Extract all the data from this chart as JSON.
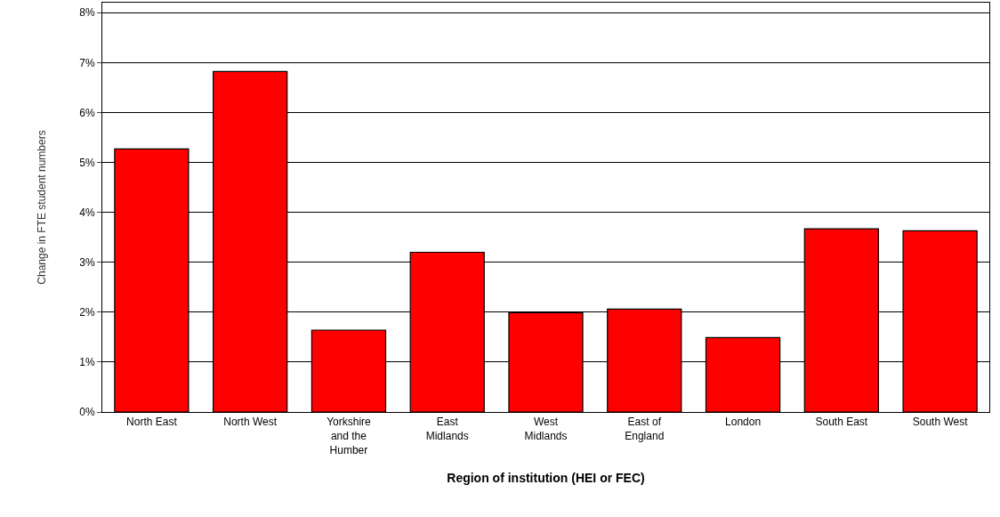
{
  "chart_data": {
    "type": "bar",
    "xlabel": "Region of institution (HEI or FEC)",
    "ylabel": "Change in FTE student numbers",
    "categories": [
      "North East",
      "North West",
      "Yorkshire\nand the\nHumber",
      "East\nMidlands",
      "West\nMidlands",
      "East of\nEngland",
      "London",
      "South East",
      "South West"
    ],
    "values": [
      5.27,
      6.82,
      1.64,
      3.2,
      1.99,
      2.06,
      1.49,
      3.67,
      3.63
    ],
    "color": "#ff0000",
    "ylim": [
      0,
      8.2
    ],
    "yticks": [
      {
        "value": 0,
        "label": "0%"
      },
      {
        "value": 1,
        "label": "1%"
      },
      {
        "value": 2,
        "label": "2%"
      },
      {
        "value": 3,
        "label": "3%"
      },
      {
        "value": 4,
        "label": "4%"
      },
      {
        "value": 5,
        "label": "5%"
      },
      {
        "value": 6,
        "label": "6%"
      },
      {
        "value": 7,
        "label": "7%"
      },
      {
        "value": 8,
        "label": "8%"
      }
    ],
    "grid": "y"
  }
}
